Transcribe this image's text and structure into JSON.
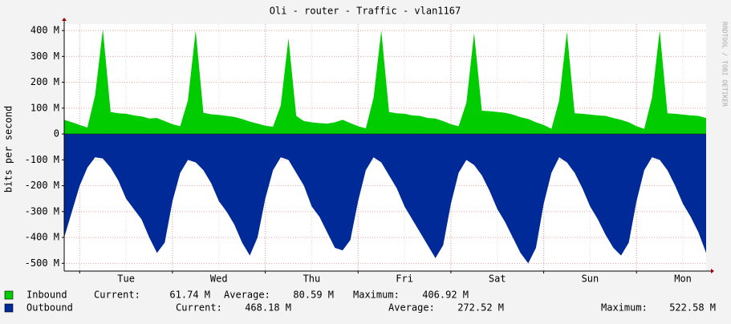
{
  "chart_data": {
    "type": "area",
    "title": "Oli - router - Traffic - vlan1167",
    "ylabel": "bits per second",
    "watermark": "RRDTOOL / TOBI OETIKER",
    "categories": [
      null,
      null,
      null,
      null,
      null,
      null,
      null,
      null,
      "Tue",
      null,
      null,
      null,
      null,
      null,
      null,
      null,
      null,
      null,
      null,
      null,
      "Wed",
      null,
      null,
      null,
      null,
      null,
      null,
      null,
      null,
      null,
      null,
      null,
      "Thu",
      null,
      null,
      null,
      null,
      null,
      null,
      null,
      null,
      null,
      null,
      null,
      "Fri",
      null,
      null,
      null,
      null,
      null,
      null,
      null,
      null,
      null,
      null,
      null,
      "Sat",
      null,
      null,
      null,
      null,
      null,
      null,
      null,
      null,
      null,
      null,
      null,
      "Sun",
      null,
      null,
      null,
      null,
      null,
      null,
      null,
      null,
      null,
      null,
      null,
      "Mon",
      null,
      null,
      null
    ],
    "ylim": [
      -530000000.0,
      425000000.0
    ],
    "yticks": [
      {
        "value": 400000000.0,
        "label": "400 M"
      },
      {
        "value": 300000000.0,
        "label": "300 M"
      },
      {
        "value": 200000000.0,
        "label": "200 M"
      },
      {
        "value": 100000000.0,
        "label": "100 M"
      },
      0,
      {
        "value": -100000000.0,
        "label": "-100 M"
      },
      {
        "value": -200000000.0,
        "label": "-200 M"
      },
      {
        "value": -300000000.0,
        "label": "-300 M"
      },
      {
        "value": -400000000.0,
        "label": "-400 M"
      },
      {
        "value": -500000000.0,
        "label": "-500 M"
      }
    ],
    "grid": true,
    "series": [
      {
        "name": "Inbound",
        "color": "#00cc00",
        "stats": [
          {
            "name": "Current:",
            "label": "61.74 M"
          },
          {
            "name": "Average:",
            "label": "80.59 M"
          },
          {
            "name": "Maximum:",
            "label": "406.92 M"
          }
        ],
        "values": [
          55000000.0,
          45000000.0,
          35000000.0,
          25000000.0,
          150000000.0,
          405000000.0,
          85000000.0,
          80000000.0,
          78000000.0,
          72000000.0,
          68000000.0,
          60000000.0,
          62000000.0,
          50000000.0,
          38000000.0,
          30000000.0,
          130000000.0,
          400000000.0,
          82000000.0,
          76000000.0,
          74000000.0,
          70000000.0,
          66000000.0,
          58000000.0,
          48000000.0,
          40000000.0,
          32000000.0,
          28000000.0,
          110000000.0,
          370000000.0,
          70000000.0,
          50000000.0,
          45000000.0,
          42000000.0,
          40000000.0,
          45000000.0,
          55000000.0,
          42000000.0,
          30000000.0,
          22000000.0,
          140000000.0,
          400000000.0,
          85000000.0,
          80000000.0,
          78000000.0,
          72000000.0,
          70000000.0,
          62000000.0,
          60000000.0,
          50000000.0,
          38000000.0,
          30000000.0,
          120000000.0,
          390000000.0,
          90000000.0,
          88000000.0,
          85000000.0,
          82000000.0,
          75000000.0,
          65000000.0,
          58000000.0,
          45000000.0,
          35000000.0,
          20000000.0,
          130000000.0,
          395000000.0,
          80000000.0,
          78000000.0,
          75000000.0,
          72000000.0,
          70000000.0,
          62000000.0,
          55000000.0,
          45000000.0,
          30000000.0,
          20000000.0,
          140000000.0,
          400000000.0,
          80000000.0,
          78000000.0,
          75000000.0,
          72000000.0,
          70000000.0,
          62000000.0
        ]
      },
      {
        "name": "Outbound",
        "color": "#002a97",
        "stats": [
          {
            "name": "Current:",
            "label": "468.18 M"
          },
          {
            "name": "Average:",
            "label": "272.52 M"
          },
          {
            "name": "Maximum:",
            "label": "522.58 M"
          }
        ],
        "values": [
          -400000000.0,
          -300000000.0,
          -200000000.0,
          -130000000.0,
          -90000000.0,
          -95000000.0,
          -130000000.0,
          -180000000.0,
          -250000000.0,
          -290000000.0,
          -330000000.0,
          -400000000.0,
          -460000000.0,
          -420000000.0,
          -260000000.0,
          -150000000.0,
          -100000000.0,
          -110000000.0,
          -140000000.0,
          -190000000.0,
          -260000000.0,
          -300000000.0,
          -350000000.0,
          -420000000.0,
          -470000000.0,
          -400000000.0,
          -250000000.0,
          -140000000.0,
          -90000000.0,
          -100000000.0,
          -150000000.0,
          -200000000.0,
          -280000000.0,
          -320000000.0,
          -380000000.0,
          -440000000.0,
          -450000000.0,
          -410000000.0,
          -260000000.0,
          -140000000.0,
          -90000000.0,
          -110000000.0,
          -160000000.0,
          -210000000.0,
          -280000000.0,
          -330000000.0,
          -380000000.0,
          -430000000.0,
          -480000000.0,
          -430000000.0,
          -270000000.0,
          -150000000.0,
          -100000000.0,
          -120000000.0,
          -160000000.0,
          -220000000.0,
          -290000000.0,
          -340000000.0,
          -400000000.0,
          -460000000.0,
          -500000000.0,
          -440000000.0,
          -270000000.0,
          -150000000.0,
          -90000000.0,
          -110000000.0,
          -150000000.0,
          -210000000.0,
          -280000000.0,
          -330000000.0,
          -390000000.0,
          -440000000.0,
          -470000000.0,
          -420000000.0,
          -260000000.0,
          -140000000.0,
          -90000000.0,
          -100000000.0,
          -140000000.0,
          -200000000.0,
          -270000000.0,
          -320000000.0,
          -380000000.0,
          -460000000.0
        ]
      }
    ]
  }
}
